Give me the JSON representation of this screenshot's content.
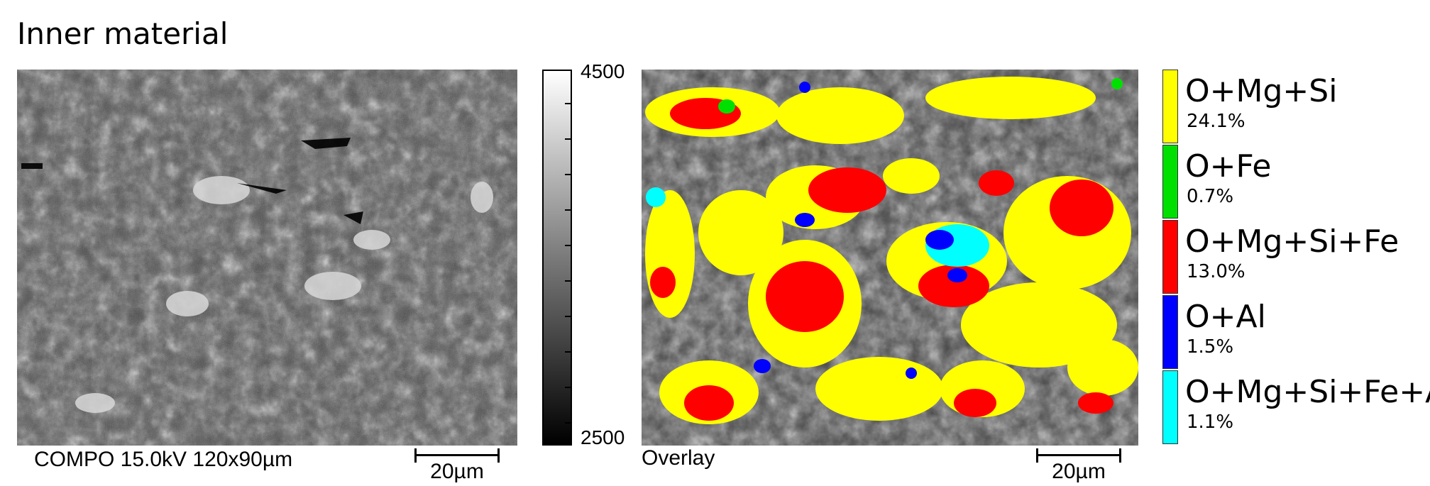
{
  "figure": {
    "title": "Inner material"
  },
  "sem_image": {
    "caption": "COMPO 15.0kV 120x90µm",
    "scalebar_label": "20µm"
  },
  "colorbar": {
    "max_label": "4500",
    "min_label": "2500"
  },
  "overlay_image": {
    "caption": "Overlay",
    "scalebar_label": "20µm"
  },
  "legend": {
    "items": [
      {
        "name": "O+Mg+Si",
        "percent": "24.1%",
        "color": "#ffff00"
      },
      {
        "name": "O+Fe",
        "percent": "0.7%",
        "color": "#00e000"
      },
      {
        "name": "O+Mg+Si+Fe",
        "percent": "13.0%",
        "color": "#ff0000"
      },
      {
        "name": "O+Al",
        "percent": "1.5%",
        "color": "#0000ff"
      },
      {
        "name": "O+Mg+Si+Fe+Al",
        "percent": "1.1%",
        "color": "#00ffff"
      }
    ]
  }
}
